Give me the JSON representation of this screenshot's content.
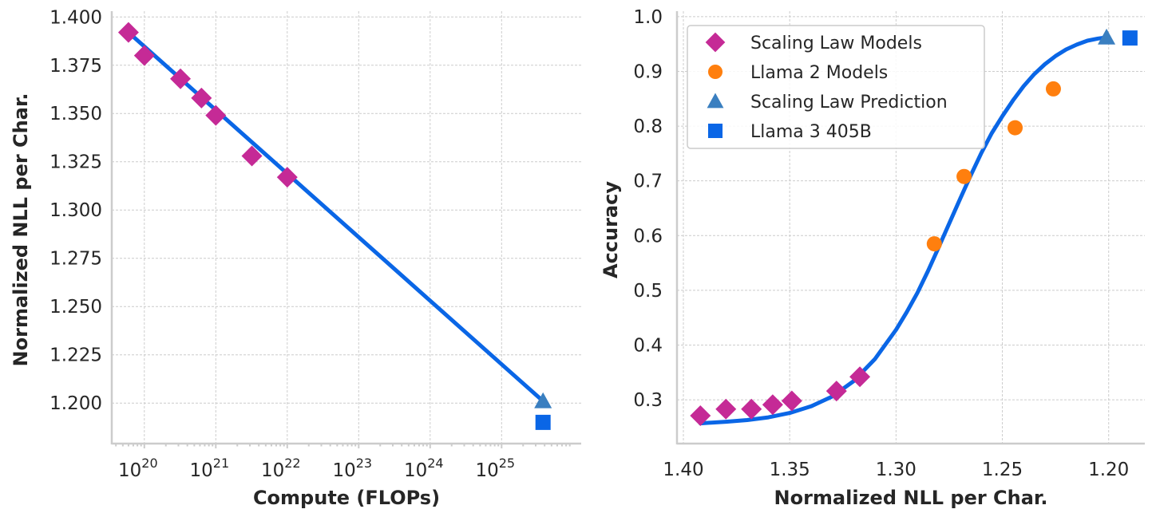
{
  "colors": {
    "fit_line": "#0a66e6",
    "scaling_law_models": "#c52a96",
    "llama2_models": "#ff7f0e",
    "scaling_law_prediction": "#3a7fc0",
    "llama3_405b": "#0a66e6"
  },
  "chart_data": [
    {
      "type": "scatter",
      "xlabel": "Compute (FLOPs)",
      "ylabel": "Normalized NLL per Char.",
      "x_scale": "log",
      "xlim": [
        3.5e+19,
        1.3e+26
      ],
      "ylim": [
        1.179,
        1.403
      ],
      "x_ticks": [
        {
          "base": "10",
          "exp": "20",
          "value": 1e+20
        },
        {
          "base": "10",
          "exp": "21",
          "value": 1e+21
        },
        {
          "base": "10",
          "exp": "22",
          "value": 1e+22
        },
        {
          "base": "10",
          "exp": "23",
          "value": 1e+23
        },
        {
          "base": "10",
          "exp": "24",
          "value": 1e+24
        },
        {
          "base": "10",
          "exp": "25",
          "value": 1e+25
        }
      ],
      "y_ticks": [
        "1.200",
        "1.225",
        "1.250",
        "1.275",
        "1.300",
        "1.325",
        "1.350",
        "1.375",
        "1.400"
      ],
      "grid": true,
      "series": [
        {
          "marker": "diamond",
          "color_key": "scaling_law_models",
          "x": [
            6e+19,
            1e+20,
            3.2e+20,
            6.3e+20,
            1e+21,
            3.2e+21,
            1e+22
          ],
          "y": [
            1.392,
            1.38,
            1.368,
            1.358,
            1.349,
            1.328,
            1.317
          ]
        },
        {
          "marker": "triangle",
          "color_key": "scaling_law_prediction",
          "x": [
            3.8e+25
          ],
          "y": [
            1.201
          ]
        },
        {
          "marker": "square",
          "color_key": "llama3_405b",
          "x": [
            3.8e+25
          ],
          "y": [
            1.19
          ]
        }
      ],
      "fit_line": {
        "x": [
          6e+19,
          3.8e+25
        ],
        "y": [
          1.392,
          1.201
        ]
      }
    },
    {
      "type": "scatter",
      "xlabel": "Normalized NLL per Char.",
      "ylabel": "Accuracy",
      "x_inverted": true,
      "xlim": [
        1.403,
        1.183
      ],
      "ylim": [
        0.22,
        1.01
      ],
      "x_ticks": [
        "1.40",
        "1.35",
        "1.30",
        "1.25",
        "1.20"
      ],
      "y_ticks": [
        "0.3",
        "0.4",
        "0.5",
        "0.6",
        "0.7",
        "0.8",
        "0.9",
        "1.0"
      ],
      "grid": true,
      "legend": {
        "position": "top-left",
        "entries": [
          {
            "label": "Scaling Law Models",
            "marker": "diamond",
            "color_key": "scaling_law_models"
          },
          {
            "label": "Llama 2 Models",
            "marker": "circle",
            "color_key": "llama2_models"
          },
          {
            "label": "Scaling Law Prediction",
            "marker": "triangle",
            "color_key": "scaling_law_prediction"
          },
          {
            "label": "Llama 3 405B",
            "marker": "square",
            "color_key": "llama3_405b"
          }
        ]
      },
      "series": [
        {
          "name": "Scaling Law Models",
          "marker": "diamond",
          "color_key": "scaling_law_models",
          "x": [
            1.392,
            1.38,
            1.368,
            1.358,
            1.349,
            1.328,
            1.317
          ],
          "y": [
            0.271,
            0.283,
            0.283,
            0.291,
            0.298,
            0.316,
            0.342
          ]
        },
        {
          "name": "Llama 2 Models",
          "marker": "circle",
          "color_key": "llama2_models",
          "x": [
            1.282,
            1.268,
            1.244,
            1.226
          ],
          "y": [
            0.585,
            0.708,
            0.797,
            0.868
          ]
        },
        {
          "name": "Scaling Law Prediction",
          "marker": "triangle",
          "color_key": "scaling_law_prediction",
          "x": [
            1.201
          ],
          "y": [
            0.962
          ]
        },
        {
          "name": "Llama 3 405B",
          "marker": "square",
          "color_key": "llama3_405b",
          "x": [
            1.19
          ],
          "y": [
            0.961
          ]
        }
      ],
      "fit_curve": {
        "x": [
          1.392,
          1.38,
          1.37,
          1.36,
          1.35,
          1.34,
          1.33,
          1.32,
          1.31,
          1.3,
          1.295,
          1.29,
          1.285,
          1.28,
          1.275,
          1.27,
          1.265,
          1.26,
          1.255,
          1.25,
          1.245,
          1.24,
          1.235,
          1.23,
          1.225,
          1.22,
          1.215,
          1.21,
          1.205,
          1.201
        ],
        "y": [
          0.257,
          0.26,
          0.263,
          0.268,
          0.276,
          0.288,
          0.306,
          0.334,
          0.374,
          0.428,
          0.46,
          0.495,
          0.535,
          0.578,
          0.622,
          0.666,
          0.709,
          0.75,
          0.787,
          0.818,
          0.847,
          0.873,
          0.895,
          0.913,
          0.928,
          0.94,
          0.949,
          0.956,
          0.96,
          0.962
        ]
      }
    }
  ]
}
